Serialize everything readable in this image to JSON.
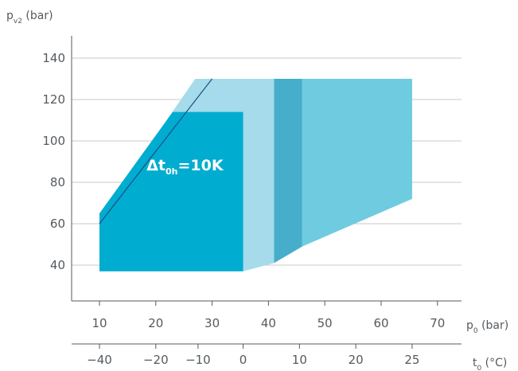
{
  "chart_data": {
    "type": "area",
    "ylabel": {
      "main": "p",
      "sub": "v2",
      "unit": " (bar)"
    },
    "xlabel_primary": {
      "main": "p",
      "sub": "0",
      "unit": " (bar)"
    },
    "xlabel_secondary": {
      "main": "t",
      "sub": "0",
      "unit": " (°C)"
    },
    "ylim": [
      23,
      150
    ],
    "xlim": [
      5,
      75
    ],
    "y_ticks": [
      40,
      60,
      80,
      100,
      120,
      140
    ],
    "x_ticks": [
      10,
      20,
      30,
      40,
      50,
      60,
      70
    ],
    "x_secondary_ticks": [
      {
        "label": "−40",
        "p0": 10
      },
      {
        "label": "−20",
        "p0": 20
      },
      {
        "label": "−10",
        "p0": 27.5
      },
      {
        "label": "0",
        "p0": 35.5
      },
      {
        "label": "10",
        "p0": 45.5
      },
      {
        "label": "20",
        "p0": 55.5
      },
      {
        "label": "25",
        "p0": 65.5
      }
    ],
    "grid": true,
    "colors": {
      "light": "#a5dbea",
      "medium": "#6fcbe0",
      "dark": "#46aecb",
      "inner": "#00acd0",
      "line": "#1d4e86",
      "axis": "#555a5e",
      "grid": "#c8c8c8"
    },
    "regions": [
      {
        "id": "outer-light",
        "color": "light",
        "points": [
          [
            10,
            63
          ],
          [
            27,
            130
          ],
          [
            41,
            130
          ],
          [
            41,
            41
          ],
          [
            35.5,
            37
          ],
          [
            10,
            37
          ]
        ]
      },
      {
        "id": "band-dark",
        "color": "dark",
        "points": [
          [
            41,
            130
          ],
          [
            46,
            130
          ],
          [
            46,
            49
          ],
          [
            41,
            41
          ]
        ]
      },
      {
        "id": "right-medium",
        "color": "medium",
        "points": [
          [
            46,
            130
          ],
          [
            65.5,
            130
          ],
          [
            65.5,
            72
          ],
          [
            46,
            49
          ]
        ]
      },
      {
        "id": "inner-block",
        "color": "inner",
        "points": [
          [
            10,
            65
          ],
          [
            23,
            114
          ],
          [
            35.5,
            114
          ],
          [
            35.5,
            37
          ],
          [
            10,
            37
          ]
        ]
      }
    ],
    "superheat_line": {
      "points": [
        [
          10,
          60
        ],
        [
          30,
          130
        ]
      ]
    },
    "annotation": {
      "main": "Δt",
      "sub": "0h",
      "rest": "=10K",
      "at": [
        25,
        88
      ]
    }
  }
}
